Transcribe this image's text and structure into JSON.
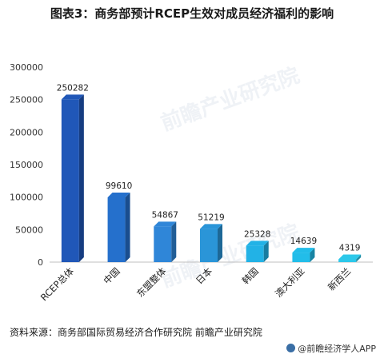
{
  "title": "图表3：商务部预计RCEP生效对成员经济福利的影响",
  "source": "资料来源：商务部国际贸易经济合作研究院 前瞻产业研究院",
  "brand": "@前瞻经济学人APP",
  "watermark": "前瞻产业研究院",
  "colors": {
    "bars": [
      "#2057b8",
      "#2570cc",
      "#2f86d8",
      "#2a95d8",
      "#22b2e6",
      "#22bde9",
      "#2cc8ea"
    ]
  },
  "chart_data": {
    "type": "bar",
    "title": "图表3：商务部预计RCEP生效对成员经济福利的影响",
    "categories": [
      "RCEP总体",
      "中国",
      "东盟整体",
      "日本",
      "韩国",
      "澳大利亚",
      "新西兰"
    ],
    "values": [
      250282,
      99610,
      54867,
      51219,
      25328,
      14639,
      4319
    ],
    "ylim": [
      0,
      300000
    ],
    "yticks": [
      "300000",
      "250000",
      "200000",
      "150000",
      "100000",
      "50000",
      "0"
    ],
    "data_labels": [
      "250282",
      "99610",
      "54867",
      "51219",
      "25328",
      "14639",
      "4319"
    ],
    "grid": false
  }
}
